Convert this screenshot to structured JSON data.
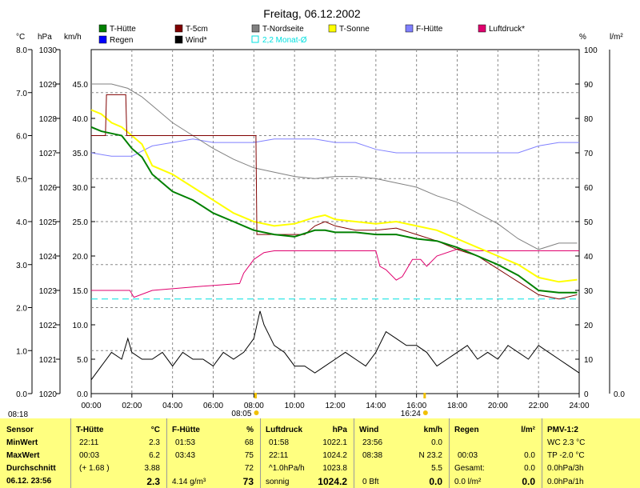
{
  "chart_data": {
    "type": "line",
    "title": "Freitag, 06.12.2002",
    "colors": {
      "T-Hütte": "#008000",
      "T-5cm": "#800000",
      "T-Nordseite": "#808080",
      "T-Sonne": "#ffff00",
      "F-Hütte": "#8080ff",
      "Luftdruck*": "#e0006e",
      "Regen": "#0000ff",
      "Wind*": "#000000",
      "2,2 Monat-Ø": "#00e0e0"
    },
    "legend": [
      {
        "name": "T-Hütte",
        "style": "box"
      },
      {
        "name": "T-5cm",
        "style": "box"
      },
      {
        "name": "T-Nordseite",
        "style": "box"
      },
      {
        "name": "T-Sonne",
        "style": "box"
      },
      {
        "name": "F-Hütte",
        "style": "box"
      },
      {
        "name": "Luftdruck*",
        "style": "box"
      },
      {
        "name": "Regen",
        "style": "box"
      },
      {
        "name": "Wind*",
        "style": "box"
      },
      {
        "name": "2,2 Monat-Ø",
        "style": "outline"
      }
    ],
    "axis_units": {
      "temp": "°C",
      "pressure": "hPa",
      "wind": "km/h",
      "humidity": "%",
      "rain": "l/m²"
    },
    "x_ticks": [
      "00:00",
      "02:00",
      "04:00",
      "06:00",
      "08:00",
      "10:00",
      "12:00",
      "14:00",
      "16:00",
      "18:00",
      "20:00",
      "22:00",
      "24:00"
    ],
    "temp_ticks": [
      "0.0",
      "1.0",
      "2.0",
      "3.0",
      "4.0",
      "5.0",
      "6.0",
      "7.0",
      "8.0"
    ],
    "pressure_ticks": [
      "1020",
      "1021",
      "1022",
      "1023",
      "1024",
      "1025",
      "1026",
      "1027",
      "1028",
      "1029",
      "1030"
    ],
    "wind_ticks": [
      "0.0",
      "5.0",
      "10.0",
      "15.0",
      "20.0",
      "25.0",
      "30.0",
      "35.0",
      "40.0",
      "45.0"
    ],
    "humidity_ticks": [
      "0",
      "10",
      "20",
      "30",
      "40",
      "50",
      "60",
      "70",
      "80",
      "90",
      "100"
    ],
    "rain_ticks": [
      "0.0"
    ],
    "ylim_temp": [
      0,
      8
    ],
    "ylim_pressure": [
      1020,
      1030
    ],
    "ylim_wind": [
      0,
      50
    ],
    "ylim_humidity": [
      0,
      100
    ],
    "sunrise": "08:05",
    "sunset": "16:24",
    "corner_time": "08:18",
    "series": [
      {
        "name": "T-Hütte",
        "axis": "temp",
        "x": [
          0,
          0.5,
          1,
          1.5,
          2,
          2.5,
          3,
          4,
          5,
          6,
          7,
          7.5,
          8,
          9,
          10,
          11,
          11.5,
          12,
          13,
          14,
          15,
          16,
          17,
          18,
          19,
          20,
          21,
          22,
          23,
          23.9
        ],
        "y": [
          6.2,
          6.1,
          6.05,
          6.0,
          5.7,
          5.5,
          5.1,
          4.7,
          4.5,
          4.2,
          4.0,
          3.9,
          3.8,
          3.7,
          3.65,
          3.8,
          3.8,
          3.75,
          3.75,
          3.7,
          3.7,
          3.6,
          3.55,
          3.4,
          3.2,
          3.0,
          2.75,
          2.4,
          2.35,
          2.35
        ]
      },
      {
        "name": "T-5cm",
        "axis": "temp",
        "x": [
          0,
          0.7,
          0.75,
          1.7,
          1.75,
          8.1,
          8.15,
          10.5,
          11.0,
          11.5,
          12,
          13,
          14,
          15,
          16,
          17,
          18,
          19,
          20,
          21,
          22,
          23,
          23.9
        ],
        "y": [
          6.0,
          6.0,
          6.95,
          6.95,
          6.0,
          6.0,
          3.7,
          3.7,
          3.9,
          4.0,
          3.9,
          3.8,
          3.8,
          3.85,
          3.7,
          3.55,
          3.35,
          3.2,
          2.9,
          2.6,
          2.3,
          2.2,
          2.3
        ]
      },
      {
        "name": "T-Nordseite",
        "axis": "temp",
        "x": [
          0,
          1,
          1.8,
          2.5,
          3,
          4,
          5,
          6,
          7,
          8,
          9,
          10,
          11,
          12,
          13,
          14,
          15,
          16,
          17,
          18,
          19,
          20,
          21,
          22,
          23,
          23.9
        ],
        "y": [
          7.2,
          7.2,
          7.1,
          6.9,
          6.7,
          6.3,
          6.0,
          5.7,
          5.45,
          5.25,
          5.15,
          5.05,
          5.0,
          5.05,
          5.05,
          5.0,
          4.9,
          4.8,
          4.6,
          4.45,
          4.2,
          3.95,
          3.6,
          3.35,
          3.5,
          3.5
        ]
      },
      {
        "name": "T-Sonne",
        "axis": "temp",
        "x": [
          0,
          0.5,
          1,
          1.5,
          2,
          2.5,
          3,
          4,
          5,
          6,
          7,
          8,
          9,
          10,
          11,
          11.5,
          12,
          13,
          14,
          15,
          16,
          17,
          18,
          19,
          20,
          21,
          22,
          23,
          23.9
        ],
        "y": [
          6.6,
          6.5,
          6.3,
          6.2,
          6.0,
          5.8,
          5.3,
          5.1,
          4.8,
          4.5,
          4.2,
          4.0,
          3.9,
          3.95,
          4.1,
          4.15,
          4.05,
          4.0,
          3.95,
          4.0,
          3.9,
          3.8,
          3.6,
          3.4,
          3.2,
          3.0,
          2.7,
          2.6,
          2.65
        ]
      },
      {
        "name": "F-Hütte",
        "axis": "humidity",
        "x": [
          0,
          1,
          2,
          3,
          4,
          5,
          6,
          7,
          8,
          9,
          10,
          11,
          12,
          13,
          14,
          15,
          16,
          17,
          18,
          19,
          20,
          21,
          22,
          23,
          24
        ],
        "y": [
          70,
          69,
          69,
          72,
          73,
          74,
          73,
          73,
          73,
          74,
          74,
          74,
          73,
          73,
          71,
          70,
          70,
          70,
          70,
          70,
          70,
          70,
          72,
          73,
          73
        ]
      },
      {
        "name": "Luftdruck*",
        "axis": "pressure",
        "x": [
          0,
          1.5,
          1.9,
          2.1,
          3,
          5,
          7.3,
          7.5,
          8,
          8.5,
          9,
          10,
          12,
          14,
          14.2,
          14.5,
          15,
          15.3,
          15.8,
          16.2,
          16.5,
          17,
          18,
          19,
          20,
          21,
          22,
          23,
          24
        ],
        "y": [
          1023.0,
          1023.0,
          1023.0,
          1022.8,
          1023.0,
          1023.1,
          1023.2,
          1023.5,
          1023.9,
          1024.1,
          1024.15,
          1024.15,
          1024.15,
          1024.15,
          1023.7,
          1023.6,
          1023.3,
          1023.4,
          1023.9,
          1023.9,
          1023.7,
          1024.0,
          1024.2,
          1024.15,
          1024.15,
          1024.15,
          1024.15,
          1024.15,
          1024.15
        ]
      },
      {
        "name": "Wind*",
        "axis": "wind",
        "x": [
          0,
          0.5,
          1,
          1.5,
          1.8,
          2,
          2.5,
          3,
          3.5,
          4,
          4.5,
          5,
          5.5,
          6,
          6.5,
          7,
          7.5,
          8,
          8.3,
          8.5,
          9,
          9.5,
          10,
          10.5,
          11,
          11.5,
          12,
          12.5,
          13,
          13.5,
          14,
          14.5,
          15,
          15.5,
          16,
          16.5,
          17,
          17.5,
          18,
          18.5,
          19,
          19.5,
          20,
          20.5,
          21,
          21.5,
          22,
          22.5,
          23,
          23.5,
          24
        ],
        "y": [
          2,
          4,
          6,
          5,
          8,
          6,
          5,
          5,
          6,
          4,
          6,
          5,
          5,
          4,
          6,
          5,
          6,
          8,
          12,
          10,
          7,
          6,
          4,
          4,
          3,
          4,
          5,
          6,
          5,
          4,
          6,
          9,
          8,
          7,
          7,
          6,
          4,
          5,
          6,
          7,
          5,
          6,
          5,
          7,
          6,
          5,
          7,
          6,
          5,
          4,
          3
        ]
      },
      {
        "name": "2,2 Monat-Ø",
        "axis": "temp",
        "dashed": true,
        "x": [
          0,
          24
        ],
        "y": [
          2.2,
          2.2
        ]
      }
    ]
  },
  "table": {
    "sensor": {
      "h": "Sensor",
      "min": "MinWert",
      "max": "MaxWert",
      "avg": "Durchschnitt",
      "now": "06.12. 23:56"
    },
    "thuette": {
      "h": "T-Hütte",
      "u": "°C",
      "min_t": "22:11",
      "min": "2.3",
      "max_t": "00:03",
      "max": "6.2",
      "avg_t": "(+ 1.68 )",
      "avg": "3.88",
      "now": "2.3"
    },
    "fhuette": {
      "h": "F-Hütte",
      "u": "%",
      "min_t": "01:53",
      "min": "68",
      "max_t": "03:43",
      "max": "75",
      "avg": "72",
      "now_t": "4.14 g/m³",
      "now": "73"
    },
    "luft": {
      "h": "Luftdruck",
      "u": "hPa",
      "min_t": "01:58",
      "min": "1022.1",
      "max_t": "22:11",
      "max": "1024.2",
      "avg_t": "^1.0hPa/h",
      "avg": "1023.8",
      "now_t": "sonnig",
      "now": "1024.2"
    },
    "wind": {
      "h": "Wind",
      "u": "km/h",
      "min_t": "23:56",
      "min": "0.0",
      "max_t": "08:38",
      "max": "N 23.2",
      "avg": "5.5",
      "now_t": "0 Bft",
      "now": "0.0"
    },
    "regen": {
      "h": "Regen",
      "u": "l/m²",
      "min_t": "00:03",
      "min": "0.0",
      "avg_t": "Gesamt:",
      "avg": "0.0",
      "now_t": "0.0 l/m²",
      "now": "0.0"
    },
    "pmv": {
      "h": "PMV-1:2",
      "r1": "WC 2.3 °C",
      "r2": "TP -2.0 °C",
      "r3": "0.0hPa/3h",
      "r4": "0.0hPa/1h"
    }
  }
}
